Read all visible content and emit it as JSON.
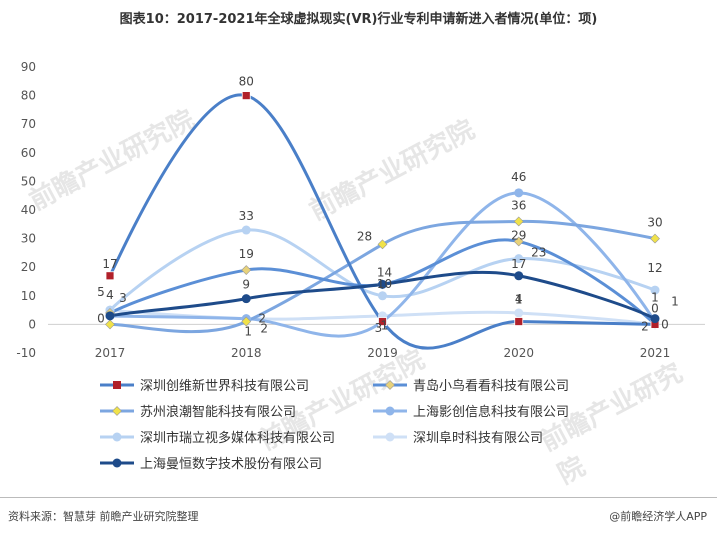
{
  "title": "图表10：2017-2021年全球虚拟现实(VR)行业专利申请新进入者情况(单位：项)",
  "source": "资料来源：智慧芽 前瞻产业研究院整理",
  "brand": "@前瞻经济学人APP",
  "watermark": "前瞻产业研究院",
  "chart_data": {
    "type": "line",
    "categories": [
      "2017",
      "2018",
      "2019",
      "2020",
      "2021"
    ],
    "ylim": [
      -10,
      90
    ],
    "yticks": [
      -10,
      0,
      10,
      20,
      30,
      40,
      50,
      60,
      70,
      80,
      90
    ],
    "grid": false,
    "legend_position": "bottom",
    "series": [
      {
        "name": "深圳创维新世界科技有限公司",
        "values": [
          17,
          80,
          1,
          1,
          0
        ],
        "color": "#4a7fc8",
        "marker": "square",
        "marker_color": "#b0202a",
        "width": 3
      },
      {
        "name": "青岛小鸟看看科技有限公司",
        "values": [
          4,
          19,
          14,
          29,
          0
        ],
        "color": "#5b8fd6",
        "marker": "diamond",
        "marker_color": "#e8d27a",
        "width": 3
      },
      {
        "name": "苏州浪潮智能科技有限公司",
        "values": [
          0,
          1,
          28,
          36,
          30
        ],
        "color": "#7ca6e0",
        "marker": "diamond",
        "marker_color": "#f0e24a",
        "width": 3
      },
      {
        "name": "上海影创信息科技有限公司",
        "values": [
          3,
          2,
          1,
          46,
          1
        ],
        "color": "#8fb5ea",
        "marker": "circle",
        "marker_color": "#8fb5ea",
        "width": 3
      },
      {
        "name": "深圳市瑞立视多媒体科技有限公司",
        "values": [
          5,
          33,
          10,
          23,
          12
        ],
        "color": "#b7d2f2",
        "marker": "circle",
        "marker_color": "#b7d2f2",
        "width": 3
      },
      {
        "name": "深圳阜时科技有限公司",
        "values": [
          5,
          2,
          3,
          4,
          0
        ],
        "color": "#cfe0f6",
        "marker": "circle",
        "marker_color": "#cfe0f6",
        "width": 3
      },
      {
        "name": "上海曼恒数字技术股份有限公司",
        "values": [
          3,
          9,
          14,
          17,
          2
        ],
        "color": "#1e4b8a",
        "marker": "circle",
        "marker_color": "#1e4b8a",
        "width": 3
      }
    ],
    "data_labels": [
      {
        "text": "17",
        "x": 0,
        "y": 17
      },
      {
        "text": "5",
        "x": 0,
        "y": 5
      },
      {
        "text": "4",
        "x": 0,
        "y": 4
      },
      {
        "text": "3",
        "x": 0,
        "y": 3
      },
      {
        "text": "0",
        "x": 0,
        "y": 0
      },
      {
        "text": "80",
        "x": 1,
        "y": 80
      },
      {
        "text": "33",
        "x": 1,
        "y": 33
      },
      {
        "text": "19",
        "x": 1,
        "y": 19
      },
      {
        "text": "9",
        "x": 1,
        "y": 9
      },
      {
        "text": "2",
        "x": 1,
        "y": 2
      },
      {
        "text": "1",
        "x": 1,
        "y": 1
      },
      {
        "text": "2",
        "x": 1,
        "y": 2
      },
      {
        "text": "28",
        "x": 2,
        "y": 28
      },
      {
        "text": "14",
        "x": 2,
        "y": 14
      },
      {
        "text": "10",
        "x": 2,
        "y": 10
      },
      {
        "text": "1",
        "x": 2,
        "y": 1
      },
      {
        "text": "3",
        "x": 2,
        "y": 3
      },
      {
        "text": "46",
        "x": 3,
        "y": 46
      },
      {
        "text": "36",
        "x": 3,
        "y": 36
      },
      {
        "text": "29",
        "x": 3,
        "y": 29
      },
      {
        "text": "23",
        "x": 3,
        "y": 23
      },
      {
        "text": "17",
        "x": 3,
        "y": 17
      },
      {
        "text": "4",
        "x": 3,
        "y": 4
      },
      {
        "text": "1",
        "x": 3,
        "y": 1
      },
      {
        "text": "30",
        "x": 4,
        "y": 30
      },
      {
        "text": "12",
        "x": 4,
        "y": 12
      },
      {
        "text": "1",
        "x": 4,
        "y": 1
      },
      {
        "text": "0",
        "x": 4,
        "y": 0
      },
      {
        "text": "1",
        "x": 4,
        "y": 1
      },
      {
        "text": "2",
        "x": 4,
        "y": 2
      },
      {
        "text": "0",
        "x": 4,
        "y": 0
      }
    ]
  }
}
